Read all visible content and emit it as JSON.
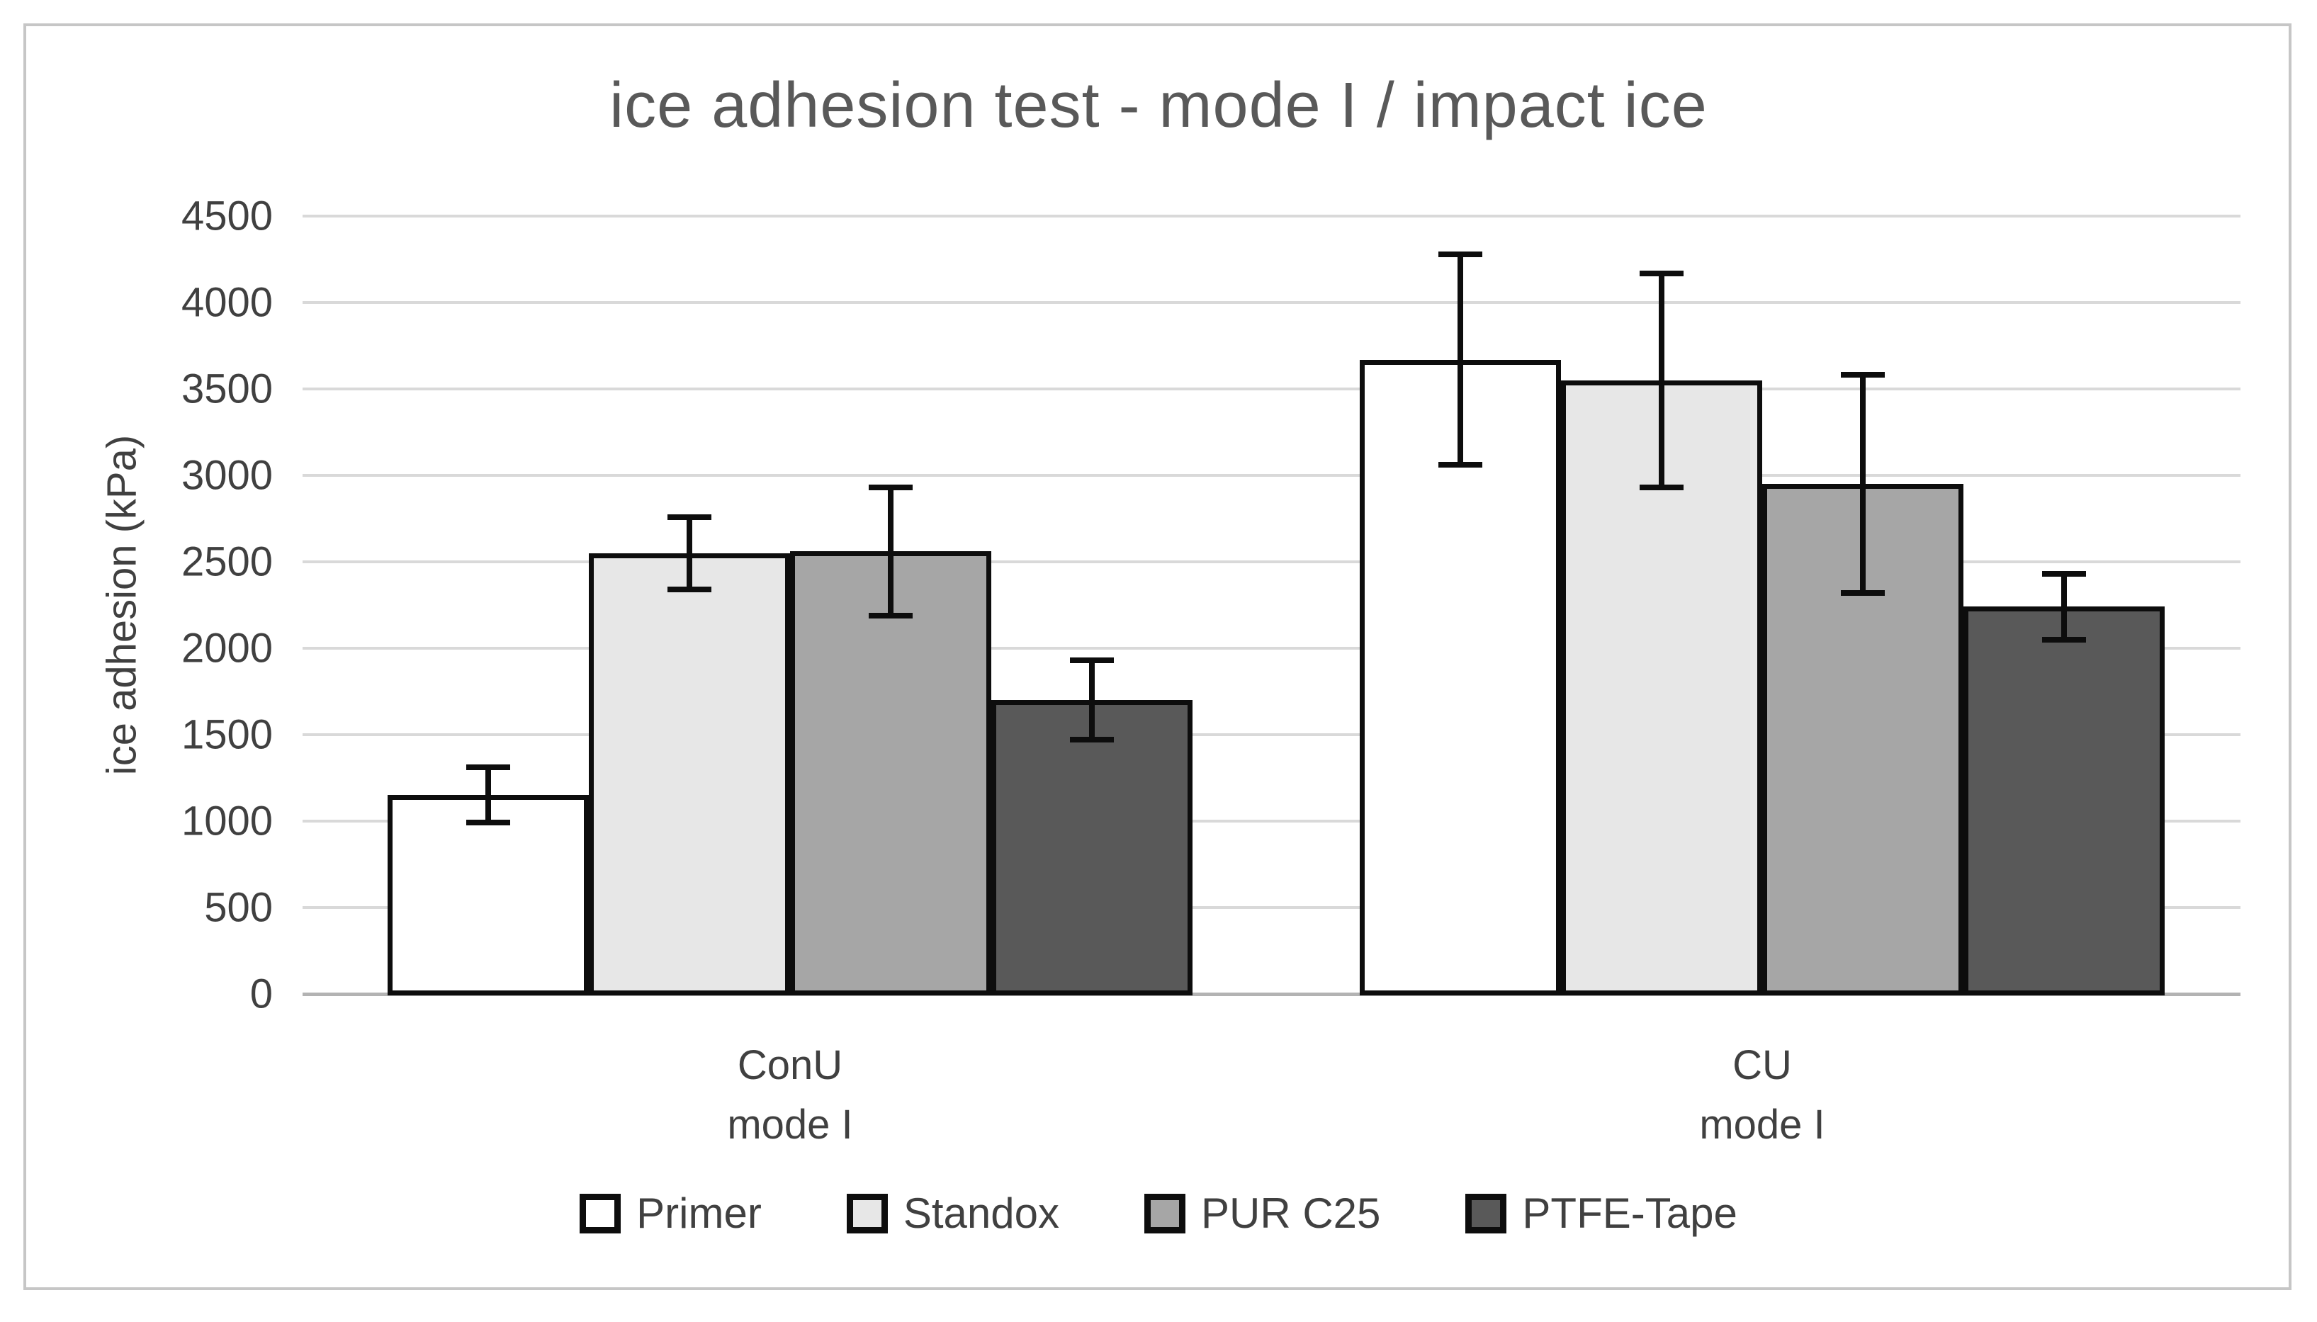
{
  "chart_data": {
    "type": "bar",
    "title": "ice adhesion test - mode I / impact ice",
    "xlabel": "",
    "ylabel": "ice adhesion (kPa)",
    "ylim": [
      0,
      4500
    ],
    "ytick_step": 500,
    "yticks": [
      0,
      500,
      1000,
      1500,
      2000,
      2500,
      3000,
      3500,
      4000,
      4500
    ],
    "grid": true,
    "legend_position": "bottom",
    "categories": [
      {
        "line1": "ConU",
        "line2": "mode I"
      },
      {
        "line1": "CU",
        "line2": "mode I"
      }
    ],
    "series": [
      {
        "name": "Primer",
        "fill": "#ffffff",
        "values": [
          1150,
          3670
        ],
        "errors": [
          160,
          610
        ]
      },
      {
        "name": "Standox",
        "fill": "#e7e7e7",
        "values": [
          2550,
          3550
        ],
        "errors": [
          210,
          620
        ]
      },
      {
        "name": "PUR C25",
        "fill": "#a6a6a6",
        "values": [
          2560,
          2950
        ],
        "errors": [
          370,
          630
        ]
      },
      {
        "name": "PTFE-Tape",
        "fill": "#595959",
        "values": [
          1700,
          2240
        ],
        "errors": [
          230,
          190
        ]
      }
    ],
    "error_bar_color": "#0d0d0d",
    "bar_border_color": "#0d0d0d",
    "gridline_color": "#d9d9d9",
    "axis_line_color": "#b3b3b3",
    "title_color": "#595959",
    "text_color": "#404040",
    "figure_border_color": "#c6c6c6"
  }
}
